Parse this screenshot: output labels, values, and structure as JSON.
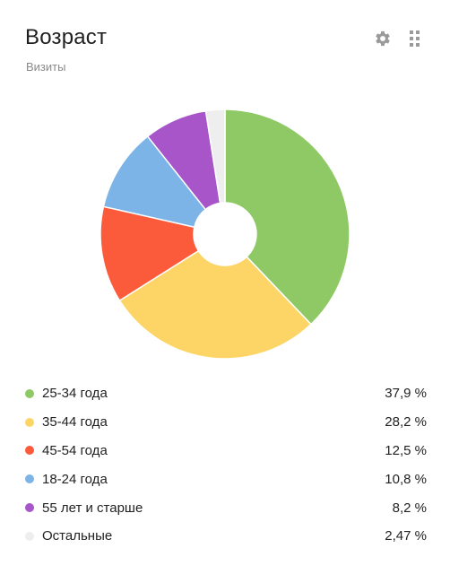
{
  "header": {
    "title": "Возраст",
    "subtitle": "Визиты",
    "icons": [
      "gear-icon",
      "drag-handle-icon"
    ]
  },
  "chart_data": {
    "type": "pie",
    "categories": [
      "25-34 года",
      "35-44 года",
      "45-54 года",
      "18-24 года",
      "55 лет и старше",
      "Остальные"
    ],
    "values": [
      37.9,
      28.2,
      12.5,
      10.8,
      8.2,
      2.47
    ],
    "colors": [
      "#8fc965",
      "#fdd566",
      "#fb5a3b",
      "#7cb4e8",
      "#a755c8",
      "#eeeeee"
    ],
    "donut": true
  },
  "legend": {
    "items": [
      {
        "label": "25-34 года",
        "value": "37,9 %",
        "color": "#8fc965"
      },
      {
        "label": "35-44 года",
        "value": "28,2 %",
        "color": "#fdd566"
      },
      {
        "label": "45-54 года",
        "value": "12,5 %",
        "color": "#fb5a3b"
      },
      {
        "label": "18-24 года",
        "value": "10,8 %",
        "color": "#7cb4e8"
      },
      {
        "label": "55 лет и старше",
        "value": "8,2 %",
        "color": "#a755c8"
      },
      {
        "label": "Остальные",
        "value": "2,47 %",
        "color": "#eeeeee"
      }
    ]
  }
}
